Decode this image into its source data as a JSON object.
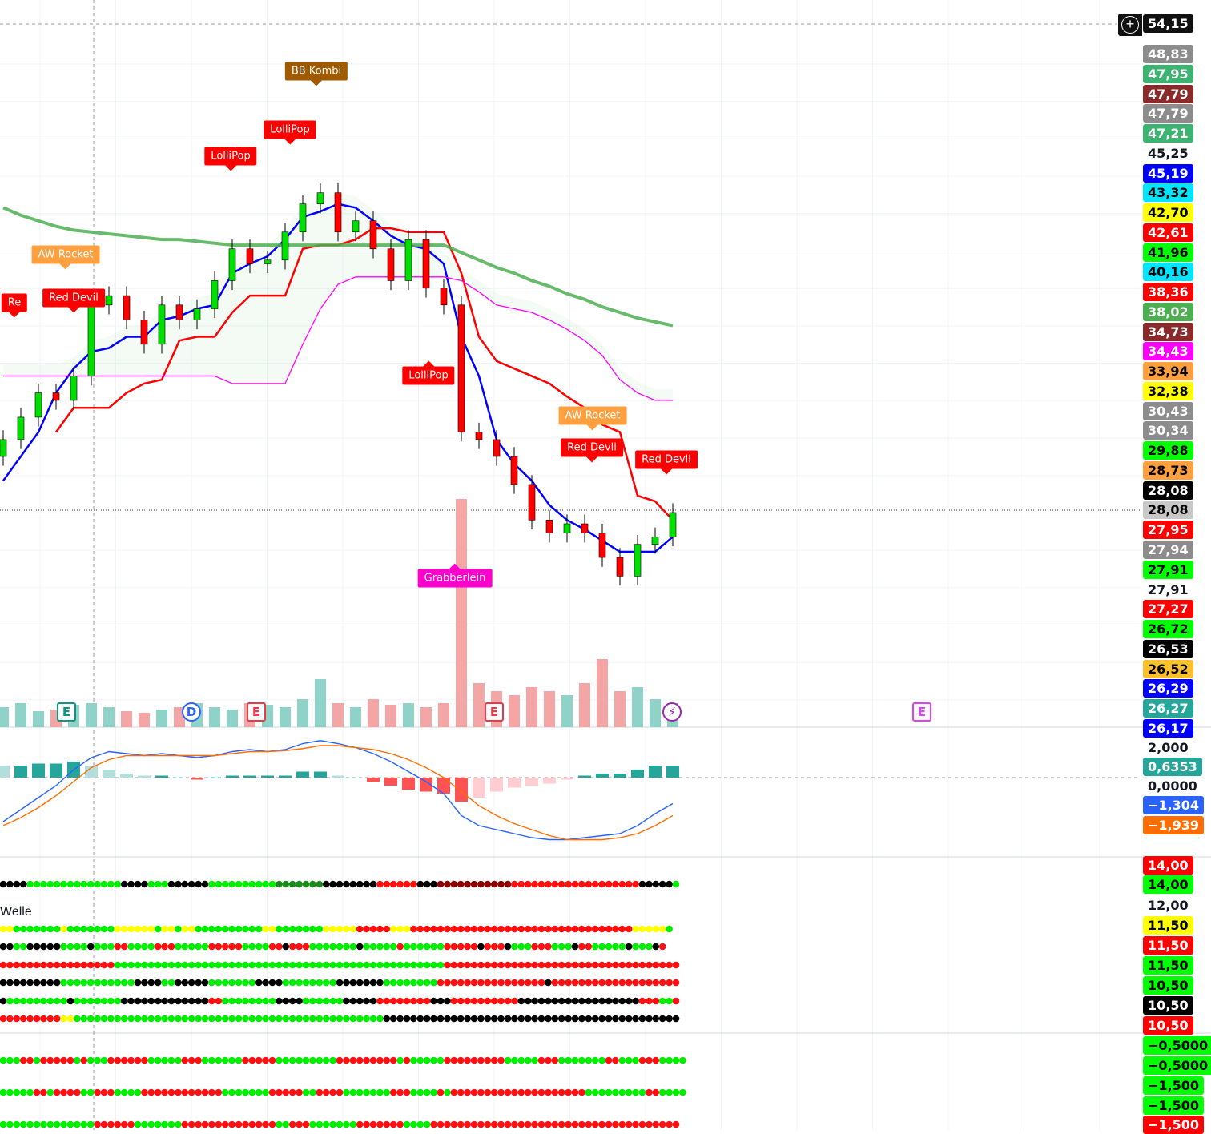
{
  "chart_data": {
    "type": "candlestick",
    "x": [
      0,
      1,
      2,
      3,
      4,
      5,
      6,
      7,
      8,
      9,
      10,
      11,
      12,
      13,
      14,
      15,
      16,
      17,
      18,
      19,
      20,
      21,
      22,
      23,
      24,
      25,
      26,
      27,
      28,
      29,
      30,
      31,
      32,
      33,
      34,
      35,
      36,
      37,
      38
    ],
    "close": [
      31.9,
      33.1,
      34.4,
      34.0,
      35.3,
      39.1,
      39.6,
      38.3,
      37.0,
      39.1,
      38.3,
      38.9,
      40.4,
      42.1,
      41.3,
      41.5,
      43.0,
      44.5,
      45.1,
      43.0,
      43.6,
      42.1,
      40.4,
      42.6,
      40.0,
      39.1,
      32.3,
      31.9,
      31.0,
      29.5,
      27.6,
      26.9,
      27.4,
      26.9,
      25.6,
      24.6,
      26.3,
      26.7,
      28.0
    ],
    "series": [
      {
        "color": "#0000ff",
        "values": [
          29.7,
          31.0,
          32.3,
          34.4,
          35.7,
          36.6,
          36.8,
          37.4,
          37.4,
          38.3,
          38.5,
          38.9,
          39.1,
          40.8,
          41.3,
          41.7,
          42.6,
          43.8,
          44.1,
          44.5,
          44.3,
          43.6,
          42.8,
          42.3,
          42.1,
          41.3,
          37.4,
          35.3,
          31.9,
          30.6,
          29.7,
          28.4,
          27.6,
          27.1,
          26.5,
          25.9,
          25.9,
          25.9,
          26.7
        ]
      },
      {
        "color": "#ff0000",
        "values": [
          null,
          null,
          null,
          32.3,
          33.6,
          33.6,
          33.6,
          34.4,
          34.9,
          35.1,
          37.2,
          37.4,
          37.4,
          38.7,
          39.6,
          39.6,
          39.6,
          42.1,
          42.3,
          42.3,
          42.6,
          43.2,
          43.2,
          43.0,
          43.0,
          43.0,
          40.8,
          37.4,
          36.1,
          35.7,
          35.3,
          34.9,
          34.2,
          33.6,
          32.7,
          32.3,
          28.9,
          28.6,
          27.6
        ]
      },
      {
        "color": "#4caf50",
        "values": [
          44.3,
          43.9,
          43.6,
          43.3,
          43.1,
          43.0,
          42.9,
          42.8,
          42.7,
          42.6,
          42.6,
          42.5,
          42.4,
          42.3,
          42.3,
          42.3,
          42.3,
          42.3,
          42.3,
          42.3,
          42.3,
          42.3,
          42.3,
          42.3,
          42.3,
          42.3,
          41.9,
          41.5,
          41.1,
          40.8,
          40.4,
          40.1,
          39.7,
          39.4,
          39.0,
          38.7,
          38.4,
          38.2,
          38.0
        ]
      },
      {
        "color": "#ff00ff",
        "values": [
          35.3,
          35.3,
          35.3,
          35.3,
          35.3,
          35.3,
          35.3,
          35.3,
          35.3,
          35.3,
          35.3,
          35.3,
          35.3,
          34.9,
          34.9,
          34.9,
          34.9,
          37.0,
          38.9,
          40.2,
          40.6,
          40.6,
          40.6,
          40.6,
          40.6,
          40.6,
          40.4,
          39.8,
          39.1,
          38.9,
          38.7,
          38.3,
          37.8,
          37.2,
          36.4,
          35.1,
          34.4,
          34.0,
          34.0
        ]
      }
    ],
    "volume": [
      25,
      30,
      20,
      22,
      28,
      30,
      25,
      20,
      18,
      22,
      25,
      30,
      25,
      22,
      30,
      28,
      25,
      35,
      60,
      30,
      25,
      35,
      28,
      30,
      25,
      30,
      285,
      55,
      45,
      40,
      50,
      45,
      40,
      55,
      85,
      45,
      50,
      35,
      30
    ],
    "macd": {
      "macd_color": "#2962ff",
      "signal_color": "#ff6d00",
      "macd": [
        -2.2,
        -1.6,
        -1.0,
        -0.4,
        0.4,
        1.0,
        1.3,
        1.2,
        1.1,
        1.2,
        1.1,
        1.0,
        1.1,
        1.3,
        1.4,
        1.3,
        1.4,
        1.7,
        1.85,
        1.7,
        1.5,
        1.2,
        0.8,
        0.3,
        -0.2,
        -0.8,
        -1.9,
        -2.4,
        -2.6,
        -2.8,
        -3.0,
        -3.1,
        -3.1,
        -3.0,
        -2.9,
        -2.8,
        -2.4,
        -1.8,
        -1.3
      ],
      "signal": [
        -2.4,
        -2.0,
        -1.5,
        -0.9,
        -0.2,
        0.5,
        0.9,
        1.1,
        1.1,
        1.1,
        1.1,
        1.1,
        1.1,
        1.2,
        1.3,
        1.3,
        1.35,
        1.45,
        1.6,
        1.6,
        1.5,
        1.4,
        1.2,
        0.9,
        0.5,
        0.0,
        -0.7,
        -1.4,
        -1.9,
        -2.3,
        -2.6,
        -2.9,
        -3.1,
        -3.1,
        -3.1,
        -3.0,
        -2.8,
        -2.4,
        -1.9
      ],
      "histogram": [
        0.6,
        0.6,
        0.7,
        0.7,
        0.8,
        0.6,
        0.4,
        0.2,
        0.1,
        0.1,
        0,
        -0.1,
        0,
        0.1,
        0.1,
        0.1,
        0.1,
        0.3,
        0.3,
        0.1,
        0,
        -0.2,
        -0.4,
        -0.6,
        -0.7,
        -0.8,
        -1.2,
        -1.0,
        -0.7,
        -0.5,
        -0.4,
        -0.3,
        -0.1,
        0.1,
        0.2,
        0.2,
        0.4,
        0.6,
        0.6
      ]
    },
    "ylim": [
      22.8,
      55
    ]
  },
  "colors": {
    "up": "#00e000",
    "down": "#ff0000",
    "vol_up": "#8fd3c8",
    "vol_down": "#f4a5a5",
    "hist_up": "#26a69a",
    "hist_up_light": "#b2dfdb",
    "hist_down": "#ff5252",
    "hist_down_light": "#ffcdd2"
  },
  "dot_palette": {
    "g": "#00ee00",
    "r": "#ff1010",
    "k": "#000000",
    "y": "#ffff00",
    "G": "#1a8a1a",
    "R": "#8b0000"
  },
  "dot_rows": [
    [
      [
        "k",
        4
      ],
      [
        "g",
        14
      ],
      [
        "k",
        4
      ],
      [
        "g",
        3
      ],
      [
        "k",
        6
      ],
      [
        "g",
        10
      ],
      [
        "G",
        7
      ],
      [
        "k",
        8
      ],
      [
        "r",
        6
      ],
      [
        "k",
        3
      ],
      [
        "R",
        11
      ],
      [
        "r",
        19
      ],
      [
        "k",
        5
      ],
      [
        "g",
        1
      ]
    ],
    [
      [
        "y",
        2
      ],
      [
        "g",
        7
      ],
      [
        "y",
        1
      ],
      [
        "g",
        7
      ],
      [
        "y",
        6
      ],
      [
        "g",
        1
      ],
      [
        "y",
        2
      ],
      [
        "g",
        1
      ],
      [
        "y",
        2
      ],
      [
        "g",
        10
      ],
      [
        "y",
        2
      ],
      [
        "g",
        7
      ],
      [
        "y",
        5
      ],
      [
        "r",
        5
      ],
      [
        "y",
        3
      ],
      [
        "r",
        33
      ],
      [
        "y",
        5
      ],
      [
        "g",
        1
      ]
    ],
    [
      [
        "k",
        2
      ],
      [
        "g",
        2
      ],
      [
        "k",
        5
      ],
      [
        "g",
        4
      ],
      [
        "k",
        1
      ],
      [
        "g",
        3
      ],
      [
        "r",
        2
      ],
      [
        "g",
        4
      ],
      [
        "r",
        3
      ],
      [
        "g",
        5
      ],
      [
        "r",
        5
      ],
      [
        "g",
        4
      ],
      [
        "r",
        2
      ],
      [
        "k",
        1
      ],
      [
        "r",
        3
      ],
      [
        "g",
        7
      ],
      [
        "k",
        1
      ],
      [
        "g",
        5
      ],
      [
        "r",
        1
      ],
      [
        "g",
        6
      ],
      [
        "r",
        5
      ],
      [
        "k",
        1
      ],
      [
        "r",
        3
      ],
      [
        "k",
        1
      ],
      [
        "g",
        3
      ],
      [
        "r",
        3
      ],
      [
        "g",
        3
      ],
      [
        "k",
        1
      ],
      [
        "r",
        2
      ],
      [
        "g",
        5
      ],
      [
        "k",
        1
      ],
      [
        "g",
        3
      ],
      [
        "k",
        1
      ],
      [
        "r",
        1
      ]
    ],
    [
      [
        "r",
        17
      ],
      [
        "g",
        49
      ],
      [
        "r",
        35
      ]
    ],
    [
      [
        "k",
        9
      ],
      [
        "g",
        11
      ],
      [
        "k",
        4
      ],
      [
        "g",
        2
      ],
      [
        "k",
        5
      ],
      [
        "g",
        7
      ],
      [
        "k",
        4
      ],
      [
        "g",
        8
      ],
      [
        "k",
        7
      ],
      [
        "g",
        8
      ],
      [
        "r",
        16
      ],
      [
        "k",
        1
      ],
      [
        "r",
        19
      ]
    ],
    [
      [
        "k",
        1
      ],
      [
        "g",
        9
      ],
      [
        "k",
        1
      ],
      [
        "g",
        7
      ],
      [
        "k",
        13
      ],
      [
        "r",
        2
      ],
      [
        "g",
        8
      ],
      [
        "k",
        4
      ],
      [
        "g",
        6
      ],
      [
        "k",
        5
      ],
      [
        "r",
        8
      ],
      [
        "k",
        3
      ],
      [
        "r",
        10
      ],
      [
        "k",
        18
      ],
      [
        "r",
        3
      ],
      [
        "g",
        2
      ],
      [
        "r",
        1
      ]
    ],
    [
      [
        "r",
        9
      ],
      [
        "y",
        2
      ],
      [
        "g",
        46
      ],
      [
        "k",
        44
      ]
    ],
    [
      [
        "g",
        3
      ],
      [
        "r",
        2
      ],
      [
        "g",
        1
      ],
      [
        "r",
        5
      ],
      [
        "g",
        1
      ],
      [
        "r",
        1
      ],
      [
        "g",
        3
      ],
      [
        "r",
        6
      ],
      [
        "g",
        5
      ],
      [
        "r",
        3
      ],
      [
        "g",
        6
      ],
      [
        "r",
        5
      ],
      [
        "g",
        9
      ],
      [
        "r",
        9
      ],
      [
        "g",
        1
      ],
      [
        "r",
        1
      ],
      [
        "g",
        5
      ],
      [
        "r",
        9
      ],
      [
        "g",
        5
      ],
      [
        "r",
        3
      ],
      [
        "g",
        7
      ],
      [
        "r",
        2
      ],
      [
        "g",
        3
      ],
      [
        "r",
        3
      ],
      [
        "g",
        4
      ]
    ],
    [
      [
        "g",
        5
      ],
      [
        "r",
        2
      ],
      [
        "g",
        1
      ],
      [
        "r",
        4
      ],
      [
        "g",
        2
      ],
      [
        "r",
        3
      ],
      [
        "g",
        4
      ],
      [
        "r",
        12
      ],
      [
        "g",
        7
      ],
      [
        "r",
        5
      ],
      [
        "g",
        2
      ],
      [
        "r",
        4
      ],
      [
        "g",
        7
      ],
      [
        "r",
        3
      ],
      [
        "g",
        4
      ],
      [
        "r",
        1
      ],
      [
        "g",
        1
      ],
      [
        "r",
        20
      ],
      [
        "g",
        9
      ],
      [
        "r",
        2
      ],
      [
        "g",
        4
      ]
    ],
    [
      [
        "g",
        14
      ],
      [
        "r",
        6
      ],
      [
        "g",
        7
      ],
      [
        "r",
        14
      ],
      [
        "g",
        2
      ],
      [
        "r",
        3
      ],
      [
        "g",
        7
      ],
      [
        "r",
        7
      ],
      [
        "g",
        4
      ],
      [
        "r",
        37
      ]
    ]
  ],
  "annotations": [
    {
      "text": "BB Kombi",
      "color": "#a05a00"
    },
    {
      "text": "LolliPop",
      "color": "#ff0000"
    },
    {
      "text": "LolliPop",
      "color": "#ff0000"
    },
    {
      "text": "AW Rocket",
      "color": "#ffa040"
    },
    {
      "text": "Re",
      "color": "#ff0000"
    },
    {
      "text": "Red Devil",
      "color": "#ff0000"
    },
    {
      "text": "LolliPop",
      "color": "#ff0000"
    },
    {
      "text": "AW Rocket",
      "color": "#ffa040"
    },
    {
      "text": "Red Devil",
      "color": "#ff0000"
    },
    {
      "text": "Red Devil",
      "color": "#ff0000"
    },
    {
      "text": "Grabberlein",
      "color": "#ff00cc"
    }
  ],
  "events": [
    {
      "text": "E",
      "color": "#089981",
      "shape": "earnings-icon"
    },
    {
      "text": "D",
      "color": "#2962ff",
      "shape": "dividend-icon"
    },
    {
      "text": "E",
      "color": "#f23645",
      "shape": "earnings-icon"
    },
    {
      "text": "E",
      "color": "#f23645",
      "shape": "earnings-icon"
    },
    {
      "text": "⚡",
      "color": "#9c27b0",
      "shape": "lightning-icon"
    },
    {
      "text": "E",
      "color": "#e040fb",
      "shape": "earnings-icon"
    }
  ],
  "pane_label": "Welle",
  "last_price": "54,15",
  "price_labels": [
    {
      "text": "48,83",
      "bg": "#8c8c8c",
      "fg": "#fff"
    },
    {
      "text": "47,95",
      "bg": "#3cb371",
      "fg": "#fff"
    },
    {
      "text": "47,79",
      "bg": "#8b2a2a",
      "fg": "#fff"
    },
    {
      "text": "47,79",
      "bg": "#8c8c8c",
      "fg": "#fff"
    },
    {
      "text": "47,21",
      "bg": "#3cb371",
      "fg": "#fff"
    },
    {
      "text": "45,25",
      "bg": "transparent",
      "fg": "#131722"
    },
    {
      "text": "45,19",
      "bg": "#0000ff",
      "fg": "#fff"
    },
    {
      "text": "43,32",
      "bg": "#00e5ff",
      "fg": "#000"
    },
    {
      "text": "42,70",
      "bg": "#ffff00",
      "fg": "#000"
    },
    {
      "text": "42,61",
      "bg": "#ff0000",
      "fg": "#fff"
    },
    {
      "text": "41,96",
      "bg": "#00ff00",
      "fg": "#000"
    },
    {
      "text": "40,16",
      "bg": "#00e5ff",
      "fg": "#000"
    },
    {
      "text": "38,36",
      "bg": "#ff0000",
      "fg": "#fff"
    },
    {
      "text": "38,02",
      "bg": "#4caf50",
      "fg": "#fff"
    },
    {
      "text": "34,73",
      "bg": "#8b2a2a",
      "fg": "#fff"
    },
    {
      "text": "34,43",
      "bg": "#ff00ff",
      "fg": "#fff"
    },
    {
      "text": "33,94",
      "bg": "#ffa040",
      "fg": "#000"
    },
    {
      "text": "32,38",
      "bg": "#ffff00",
      "fg": "#000"
    },
    {
      "text": "30,43",
      "bg": "#8c8c8c",
      "fg": "#fff"
    },
    {
      "text": "30,34",
      "bg": "#8c8c8c",
      "fg": "#fff"
    },
    {
      "text": "29,88",
      "bg": "#00ff00",
      "fg": "#000"
    },
    {
      "text": "28,73",
      "bg": "#ffa040",
      "fg": "#000"
    },
    {
      "text": "28,08",
      "bg": "#000000",
      "fg": "#fff"
    },
    {
      "text": "28,08",
      "bg": "#c8c8c8",
      "fg": "#000"
    },
    {
      "text": "27,95",
      "bg": "#ff0000",
      "fg": "#fff"
    },
    {
      "text": "27,94",
      "bg": "#8c8c8c",
      "fg": "#fff"
    },
    {
      "text": "27,91",
      "bg": "#00ff00",
      "fg": "#000"
    },
    {
      "text": "27,91",
      "bg": "transparent",
      "fg": "#131722"
    },
    {
      "text": "27,27",
      "bg": "#ff0000",
      "fg": "#fff"
    },
    {
      "text": "26,72",
      "bg": "#00ff00",
      "fg": "#000"
    },
    {
      "text": "26,53",
      "bg": "#000000",
      "fg": "#fff"
    },
    {
      "text": "26,52",
      "bg": "#fbc02d",
      "fg": "#000"
    },
    {
      "text": "26,29",
      "bg": "#0000ff",
      "fg": "#fff"
    },
    {
      "text": "26,27",
      "bg": "#26a69a",
      "fg": "#fff"
    },
    {
      "text": "26,17",
      "bg": "#0000ff",
      "fg": "#fff"
    }
  ],
  "lower_labels": [
    {
      "text": "2,000",
      "bg": "transparent",
      "fg": "#131722"
    },
    {
      "text": "0,0000",
      "bg": "transparent",
      "fg": "#131722"
    },
    {
      "text": "0,6353",
      "bg": "#26a69a",
      "fg": "#fff"
    },
    {
      "text": "−1,304",
      "bg": "#2962ff",
      "fg": "#fff"
    },
    {
      "text": "−1,939",
      "bg": "#ff6d00",
      "fg": "#fff"
    },
    {
      "text": "14,00",
      "bg": "#ff0000",
      "fg": "#fff"
    },
    {
      "text": "14,00",
      "bg": "#00ff00",
      "fg": "#000"
    },
    {
      "text": "12,00",
      "bg": "transparent",
      "fg": "#131722"
    },
    {
      "text": "11,50",
      "bg": "#ffff00",
      "fg": "#000"
    },
    {
      "text": "11,50",
      "bg": "#ff0000",
      "fg": "#fff"
    },
    {
      "text": "11,50",
      "bg": "#00ff00",
      "fg": "#000"
    },
    {
      "text": "10,50",
      "bg": "#00ff00",
      "fg": "#000"
    },
    {
      "text": "10,50",
      "bg": "#000000",
      "fg": "#fff"
    },
    {
      "text": "10,50",
      "bg": "#ff0000",
      "fg": "#fff"
    },
    {
      "text": "−0,5000",
      "bg": "#00ff00",
      "fg": "#000"
    },
    {
      "text": "−0,5000",
      "bg": "#00ff00",
      "fg": "#000"
    },
    {
      "text": "−1,500",
      "bg": "#00ff00",
      "fg": "#000"
    },
    {
      "text": "−1,500",
      "bg": "#00ff00",
      "fg": "#000"
    },
    {
      "text": "−1,500",
      "bg": "#ff0000",
      "fg": "#fff"
    }
  ]
}
